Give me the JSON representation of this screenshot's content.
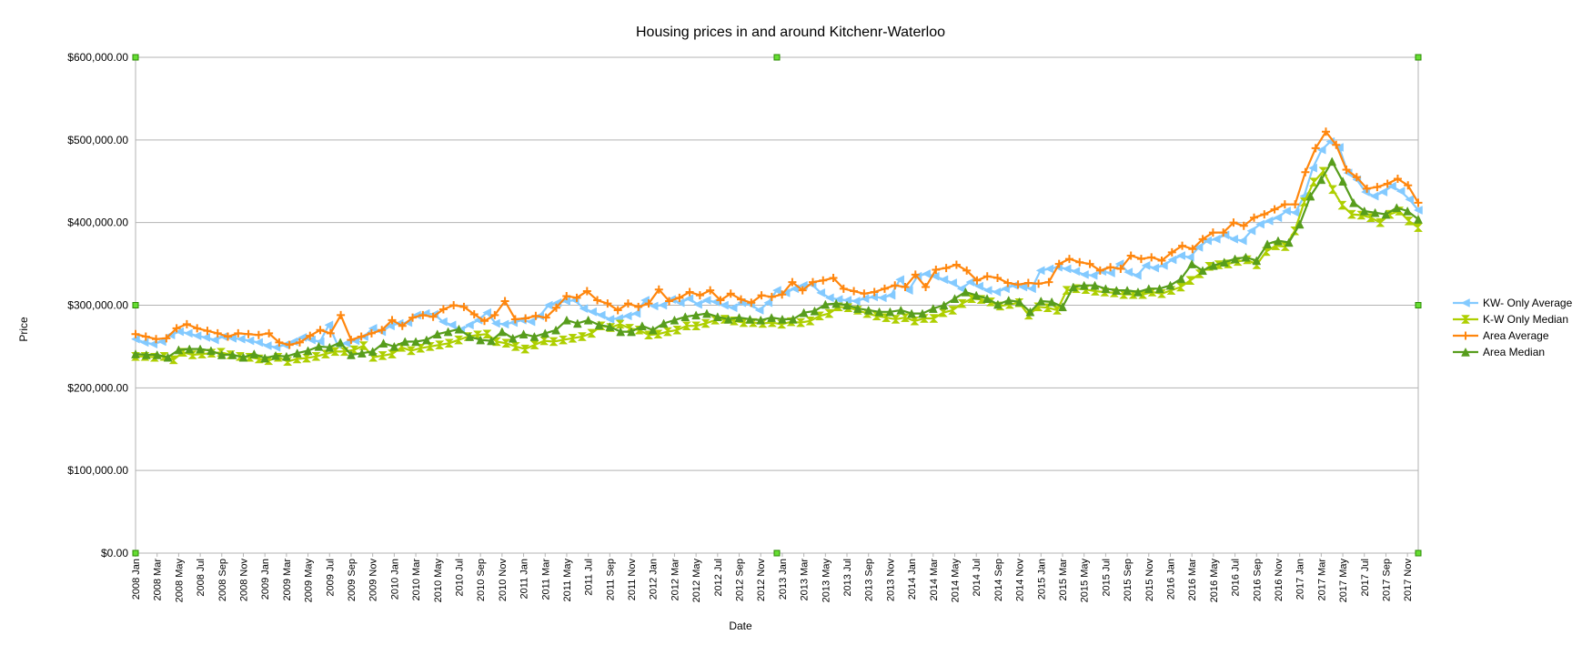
{
  "chart_data": {
    "type": "line",
    "title": "Housing prices in and around Kitchenr-Waterloo",
    "xlabel": "Date",
    "ylabel": "Price",
    "ylim": [
      0,
      600000
    ],
    "yticks": [
      0,
      100000,
      200000,
      300000,
      400000,
      500000,
      600000
    ],
    "ytick_labels": [
      "$0.00",
      "$100,000.00",
      "$200,000.00",
      "$300,000.00",
      "$400,000.00",
      "$500,000.00",
      "$600,000.00"
    ],
    "grid": true,
    "legend_position": "right",
    "x_tick_labels": [
      "2008 Jan",
      "2008 Mar",
      "2008 May",
      "2008 Jul",
      "2008 Sep",
      "2008 Nov",
      "2009 Jan",
      "2009 Mar",
      "2009 May",
      "2009 Jul",
      "2009 Sep",
      "2009 Nov",
      "2010 Jan",
      "2010 Mar",
      "2010 May",
      "2010 Jul",
      "2010 Sep",
      "2010 Nov",
      "2011 Jan",
      "2011 Mar",
      "2011 May",
      "2011 Jul",
      "2011 Sep",
      "2011 Nov",
      "2012 Jan",
      "2012 Mar",
      "2012 May",
      "2012 Jul",
      "2012 Sep",
      "2012 Nov",
      "2013 Jan",
      "2013 Mar",
      "2013 May",
      "2013 Jul",
      "2013 Sep",
      "2013 Nov",
      "2014 Jan",
      "2014 Mar",
      "2014 May",
      "2014 Jul",
      "2014 Sep",
      "2014 Nov",
      "2015 Jan",
      "2015 Mar",
      "2015 May",
      "2015 Jul",
      "2015 Sep",
      "2015 Nov",
      "2016 Jan",
      "2016 Mar",
      "2016 May",
      "2016 Jul",
      "2016 Sep",
      "2016 Nov",
      "2017 Jan",
      "2017 Mar",
      "2017 May",
      "2017 Jul",
      "2017 Sep",
      "2017 Nov"
    ],
    "series": [
      {
        "name": "KW- Only Average",
        "color": "#83caff",
        "marker": "triangle-left",
        "values": [
          259000,
          255000,
          253000,
          256000,
          264000,
          268000,
          266000,
          263000,
          261000,
          258000,
          262000,
          260000,
          259000,
          257000,
          255000,
          251000,
          249000,
          252000,
          256000,
          261000,
          258000,
          256000,
          276000,
          252000,
          254000,
          257000,
          262000,
          272000,
          268000,
          275000,
          278000,
          279000,
          288000,
          290000,
          289000,
          280000,
          276000,
          270000,
          276000,
          282000,
          291000,
          278000,
          277000,
          279000,
          282000,
          280000,
          287000,
          300000,
          303000,
          305000,
          306000,
          296000,
          292000,
          288000,
          283000,
          284000,
          287000,
          290000,
          306000,
          299000,
          300000,
          307000,
          303000,
          308000,
          301000,
          306000,
          304000,
          300000,
          297000,
          303000,
          301000,
          294000,
          303000,
          318000,
          315000,
          320000,
          324000,
          325000,
          315000,
          309000,
          307000,
          306000,
          305000,
          308000,
          310000,
          309000,
          312000,
          331000,
          318000,
          335000,
          338000,
          335000,
          331000,
          327000,
          320000,
          328000,
          323000,
          318000,
          316000,
          320000,
          324000,
          322000,
          320000,
          342000,
          344000,
          346000,
          344000,
          341000,
          337000,
          336000,
          341000,
          339000,
          350000,
          340000,
          336000,
          348000,
          345000,
          348000,
          355000,
          360000,
          358000,
          370000,
          378000,
          380000,
          385000,
          380000,
          378000,
          390000,
          398000,
          402000,
          406000,
          414000,
          412000,
          432000,
          466000,
          488000,
          498000,
          491000,
          460000,
          452000,
          437000,
          432000,
          437000,
          444000,
          438000,
          428000,
          415000
        ]
      },
      {
        "name": "K-W Only Median",
        "color": "#aecf00",
        "marker": "bowtie",
        "values": [
          238000,
          238000,
          237000,
          238000,
          234000,
          243000,
          240000,
          241000,
          242000,
          243000,
          240000,
          238000,
          237000,
          235000,
          233000,
          237000,
          232000,
          235000,
          236000,
          238000,
          241000,
          244000,
          244000,
          246000,
          251000,
          237000,
          239000,
          241000,
          249000,
          245000,
          248000,
          250000,
          252000,
          254000,
          258000,
          262000,
          264000,
          265000,
          256000,
          254000,
          250000,
          247000,
          252000,
          257000,
          256000,
          258000,
          260000,
          262000,
          266000,
          275000,
          273000,
          277000,
          272000,
          270000,
          264000,
          265000,
          268000,
          270000,
          275000,
          275000,
          278000,
          282000,
          283000,
          281000,
          279000,
          279000,
          278000,
          279000,
          277000,
          280000,
          279000,
          281000,
          287000,
          290000,
          298000,
          297000,
          294000,
          290000,
          287000,
          285000,
          283000,
          285000,
          281000,
          284000,
          284000,
          291000,
          294000,
          302000,
          308000,
          307000,
          304000,
          299000,
          301000,
          303000,
          288000,
          298000,
          297000,
          294000,
          318000,
          320000,
          319000,
          317000,
          316000,
          315000,
          313000,
          313000,
          313000,
          316000,
          314000,
          318000,
          322000,
          330000,
          338000,
          347000,
          349000,
          350000,
          353000,
          355000,
          349000,
          365000,
          372000,
          371000,
          390000,
          425000,
          449000,
          462000,
          440000,
          421000,
          410000,
          409000,
          406000,
          400000,
          410000,
          414000,
          402000,
          394000
        ]
      },
      {
        "name": "Area Average",
        "color": "#ff860d",
        "marker": "plus",
        "values": [
          265000,
          262000,
          259000,
          260000,
          272000,
          277000,
          272000,
          269000,
          266000,
          262000,
          266000,
          265000,
          264000,
          266000,
          255000,
          252000,
          255000,
          263000,
          270000,
          266000,
          288000,
          258000,
          262000,
          266000,
          270000,
          282000,
          275000,
          285000,
          288000,
          286000,
          295000,
          300000,
          298000,
          289000,
          281000,
          288000,
          305000,
          283000,
          284000,
          287000,
          285000,
          297000,
          311000,
          309000,
          317000,
          306000,
          302000,
          294000,
          302000,
          298000,
          302000,
          319000,
          305000,
          309000,
          316000,
          312000,
          318000,
          306000,
          314000,
          307000,
          303000,
          312000,
          310000,
          313000,
          328000,
          318000,
          328000,
          330000,
          333000,
          320000,
          317000,
          314000,
          316000,
          320000,
          324000,
          322000,
          337000,
          322000,
          343000,
          345000,
          349000,
          342000,
          330000,
          335000,
          333000,
          327000,
          325000,
          327000,
          326000,
          328000,
          350000,
          356000,
          352000,
          350000,
          342000,
          346000,
          344000,
          360000,
          356000,
          358000,
          354000,
          364000,
          372000,
          368000,
          380000,
          388000,
          388000,
          400000,
          396000,
          406000,
          410000,
          416000,
          422000,
          422000,
          461000,
          490000,
          510000,
          494000,
          464000,
          455000,
          441000,
          443000,
          447000,
          453000,
          445000,
          424000
        ]
      },
      {
        "name": "Area Median",
        "color": "#579d1c",
        "marker": "triangle-up",
        "values": [
          241000,
          240000,
          240000,
          237000,
          246000,
          247000,
          247000,
          245000,
          240000,
          240000,
          237000,
          241000,
          236000,
          239000,
          238000,
          242000,
          245000,
          250000,
          249000,
          255000,
          240000,
          242000,
          244000,
          254000,
          250000,
          256000,
          256000,
          258000,
          265000,
          268000,
          271000,
          262000,
          258000,
          257000,
          268000,
          260000,
          265000,
          262000,
          266000,
          270000,
          282000,
          278000,
          282000,
          276000,
          274000,
          268000,
          268000,
          275000,
          270000,
          278000,
          282000,
          286000,
          288000,
          290000,
          286000,
          283000,
          285000,
          283000,
          282000,
          285000,
          283000,
          283000,
          291000,
          293000,
          301000,
          302000,
          300000,
          296000,
          294000,
          292000,
          292000,
          294000,
          290000,
          290000,
          296000,
          300000,
          308000,
          316000,
          312000,
          308000,
          301000,
          306000,
          304000,
          292000,
          305000,
          304000,
          298000,
          322000,
          324000,
          324000,
          320000,
          318000,
          318000,
          316000,
          320000,
          320000,
          324000,
          332000,
          350000,
          342000,
          348000,
          352000,
          356000,
          358000,
          354000,
          374000,
          378000,
          376000,
          398000,
          432000,
          452000,
          474000,
          450000,
          424000,
          414000,
          412000,
          410000,
          418000,
          414000,
          404000
        ]
      }
    ]
  }
}
